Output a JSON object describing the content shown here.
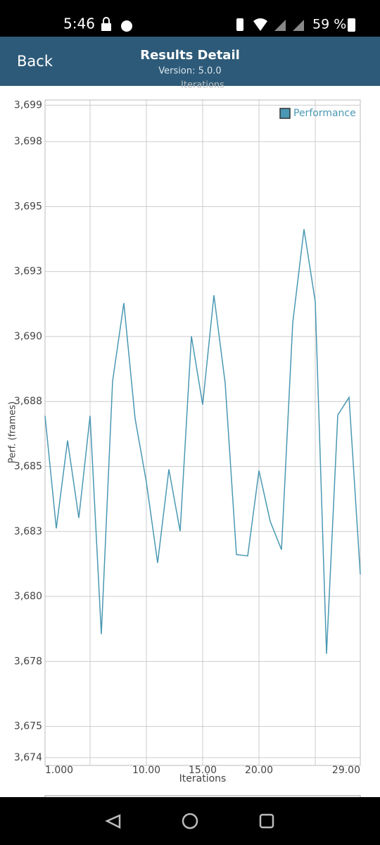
{
  "status_bar": {
    "time": "5:46",
    "battery": "59 %"
  },
  "header": {
    "back": "Back",
    "title": "Results Detail",
    "subtitle": "Version: 5.0.0"
  },
  "chart_data": {
    "type": "line",
    "x_label": "Iterations",
    "y_label": "Perf. (frames)",
    "x": [
      1,
      2,
      3,
      4,
      5,
      6,
      7,
      8,
      9,
      10,
      11,
      12,
      13,
      14,
      15,
      16,
      17,
      18,
      19,
      20,
      21,
      22,
      23,
      24,
      25,
      26,
      27,
      28,
      29
    ],
    "series": [
      {
        "name": "Performance",
        "color": "#4a98b3",
        "values": [
          3686.95,
          3682.62,
          3686.0,
          3683.02,
          3686.95,
          3678.55,
          3688.28,
          3691.29,
          3686.84,
          3684.4,
          3681.29,
          3684.89,
          3682.51,
          3690.01,
          3687.38,
          3691.59,
          3688.2,
          3681.61,
          3681.56,
          3684.84,
          3682.89,
          3681.8,
          3690.53,
          3694.13,
          3691.34,
          3677.79,
          3686.98,
          3687.66,
          3680.85
        ]
      }
    ],
    "xlim": [
      1,
      29
    ],
    "ylim": [
      3673.5,
      3699.1
    ],
    "xticks": [
      {
        "value": 1,
        "label": "1.000"
      },
      {
        "value": 10,
        "label": "10.00"
      },
      {
        "value": 15,
        "label": "15.00"
      },
      {
        "value": 20,
        "label": "20.00"
      },
      {
        "value": 29,
        "label": "29.00"
      }
    ],
    "xgrid": [
      5,
      10,
      15,
      20,
      25
    ],
    "yticks": [
      {
        "value": 3698.9,
        "label": "3,699"
      },
      {
        "value": 3697.5,
        "label": "3,698"
      },
      {
        "value": 3695,
        "label": "3,695"
      },
      {
        "value": 3692.5,
        "label": "3,693"
      },
      {
        "value": 3690,
        "label": "3,690"
      },
      {
        "value": 3687.5,
        "label": "3,688"
      },
      {
        "value": 3685,
        "label": "3,685"
      },
      {
        "value": 3682.5,
        "label": "3,683"
      },
      {
        "value": 3680,
        "label": "3,680"
      },
      {
        "value": 3677.5,
        "label": "3,678"
      },
      {
        "value": 3675,
        "label": "3,675"
      },
      {
        "value": 3673.8,
        "label": "3,674"
      }
    ],
    "grid": true,
    "legend": "top-right"
  }
}
